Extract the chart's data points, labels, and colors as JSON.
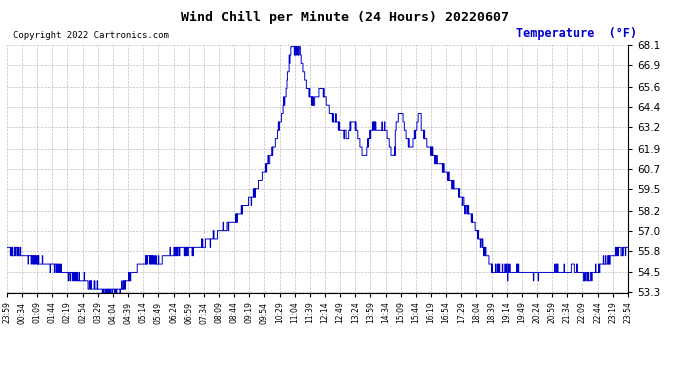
{
  "title": "Wind Chill per Minute (24 Hours) 20220607",
  "copyright_text": "Copyright 2022 Cartronics.com",
  "legend_label": "Temperature  (°F)",
  "line_color": "#0000CC",
  "background_color": "#ffffff",
  "grid_color": "#b0b0b0",
  "ylim": [
    53.3,
    68.1
  ],
  "yticks": [
    53.3,
    54.5,
    55.8,
    57.0,
    58.2,
    59.5,
    60.7,
    61.9,
    63.2,
    64.4,
    65.6,
    66.9,
    68.1
  ],
  "x_tick_labels": [
    "23:59",
    "00:34",
    "01:09",
    "01:44",
    "02:19",
    "02:54",
    "03:29",
    "04:04",
    "04:39",
    "05:14",
    "05:49",
    "06:24",
    "06:59",
    "07:34",
    "08:09",
    "08:44",
    "09:19",
    "09:54",
    "10:29",
    "11:04",
    "11:39",
    "12:14",
    "12:49",
    "13:24",
    "13:59",
    "14:34",
    "15:09",
    "15:44",
    "16:19",
    "16:54",
    "17:29",
    "18:04",
    "18:39",
    "19:14",
    "19:49",
    "20:24",
    "20:59",
    "21:34",
    "22:09",
    "22:44",
    "23:19",
    "23:54"
  ]
}
